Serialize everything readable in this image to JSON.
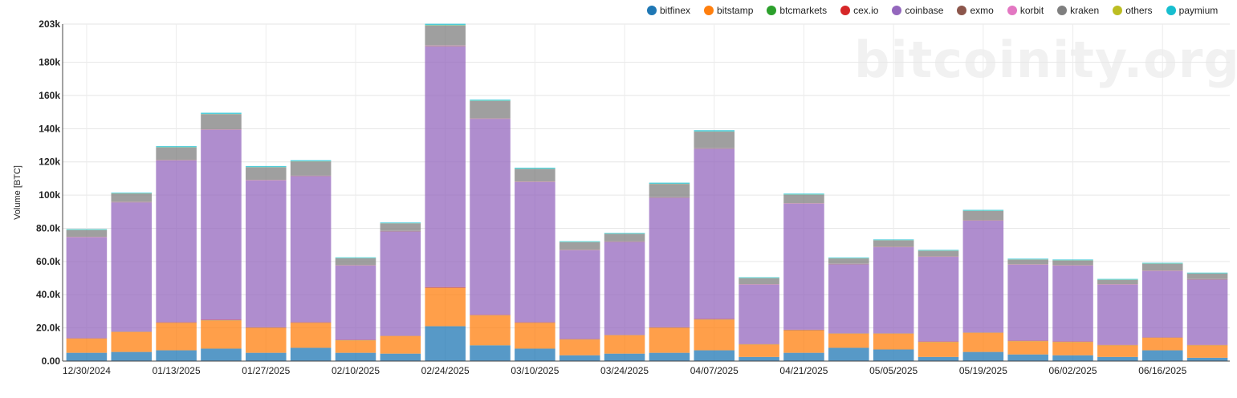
{
  "chart_data": {
    "type": "bar",
    "stacked": true,
    "ylabel": "Volume [BTC]",
    "ylim": [
      0,
      203000
    ],
    "yticks": [
      "0.00",
      "20.0k",
      "40.0k",
      "60.0k",
      "80.0k",
      "100k",
      "120k",
      "140k",
      "160k",
      "180k",
      "203k"
    ],
    "ytick_values": [
      0,
      20000,
      40000,
      60000,
      80000,
      100000,
      120000,
      140000,
      160000,
      180000,
      203000
    ],
    "grid": true,
    "legend_position": "top-right",
    "watermark": "bitcoinity.org",
    "categories": [
      "12/30/2024",
      "01/06/2025",
      "01/13/2025",
      "01/20/2025",
      "01/27/2025",
      "02/03/2025",
      "02/10/2025",
      "02/17/2025",
      "02/24/2025",
      "03/03/2025",
      "03/10/2025",
      "03/17/2025",
      "03/24/2025",
      "03/31/2025",
      "04/07/2025",
      "04/14/2025",
      "04/21/2025",
      "04/28/2025",
      "05/05/2025",
      "05/12/2025",
      "05/19/2025",
      "05/26/2025",
      "06/02/2025",
      "06/09/2025",
      "06/16/2025",
      "06/23/2025"
    ],
    "x_tick_labels": [
      "12/30/2024",
      "01/13/2025",
      "01/27/2025",
      "02/10/2025",
      "02/24/2025",
      "03/10/2025",
      "03/24/2025",
      "04/07/2025",
      "04/21/2025",
      "05/05/2025",
      "05/19/2025",
      "06/02/2025",
      "06/16/2025"
    ],
    "series": [
      {
        "name": "bitfinex",
        "color": "#1f77b4",
        "values": [
          5000,
          5500,
          6500,
          7500,
          5000,
          8000,
          5000,
          4500,
          21000,
          9500,
          7500,
          3500,
          4500,
          5000,
          6500,
          2500,
          5000,
          8000,
          7000,
          2500,
          5500,
          4000,
          3500,
          2500,
          6500,
          2000
        ]
      },
      {
        "name": "bitstamp",
        "color": "#ff7f0e",
        "values": [
          8500,
          12000,
          16500,
          17000,
          15000,
          15000,
          7500,
          10500,
          23000,
          18000,
          15500,
          9500,
          11000,
          15000,
          18500,
          7500,
          13500,
          8500,
          9500,
          9000,
          11500,
          8000,
          8000,
          7000,
          7500,
          7500
        ]
      },
      {
        "name": "btcmarkets",
        "color": "#2ca02c",
        "values": [
          100,
          100,
          100,
          100,
          100,
          100,
          100,
          100,
          100,
          100,
          100,
          100,
          100,
          100,
          100,
          100,
          100,
          100,
          100,
          100,
          100,
          100,
          100,
          100,
          100,
          100
        ]
      },
      {
        "name": "cex.io",
        "color": "#d62728",
        "values": [
          200,
          200,
          300,
          300,
          300,
          300,
          200,
          200,
          500,
          300,
          300,
          200,
          200,
          300,
          300,
          200,
          300,
          200,
          200,
          200,
          200,
          200,
          200,
          200,
          200,
          200
        ]
      },
      {
        "name": "coinbase",
        "color": "#9467bd",
        "values": [
          60800,
          77800,
          97500,
          114500,
          88500,
          88000,
          44800,
          62800,
          145000,
          118000,
          84500,
          53500,
          56000,
          78000,
          102500,
          35800,
          76000,
          41500,
          51800,
          51000,
          67300,
          45800,
          45800,
          36300,
          40000,
          39300
        ]
      },
      {
        "name": "exmo",
        "color": "#8c564b",
        "values": [
          200,
          200,
          200,
          200,
          200,
          200,
          200,
          200,
          300,
          200,
          200,
          200,
          200,
          200,
          200,
          200,
          200,
          200,
          200,
          200,
          200,
          200,
          200,
          200,
          200,
          200
        ]
      },
      {
        "name": "korbit",
        "color": "#e377c2",
        "values": [
          100,
          100,
          100,
          100,
          100,
          100,
          100,
          100,
          200,
          100,
          100,
          100,
          100,
          100,
          100,
          100,
          100,
          100,
          100,
          100,
          100,
          100,
          100,
          100,
          100,
          100
        ]
      },
      {
        "name": "kraken",
        "color": "#7f7f7f",
        "values": [
          4000,
          5000,
          7500,
          9000,
          7500,
          8500,
          4000,
          4500,
          12000,
          10500,
          7500,
          4500,
          4500,
          8000,
          10000,
          3500,
          5000,
          3200,
          3800,
          3300,
          5500,
          2700,
          2700,
          2500,
          4000,
          3300
        ]
      },
      {
        "name": "others",
        "color": "#bcbd22",
        "values": [
          100,
          100,
          100,
          100,
          100,
          100,
          100,
          100,
          200,
          100,
          100,
          100,
          100,
          100,
          100,
          100,
          100,
          100,
          100,
          100,
          100,
          100,
          100,
          100,
          100,
          100
        ]
      },
      {
        "name": "paymium",
        "color": "#17becf",
        "values": [
          500,
          500,
          700,
          800,
          700,
          700,
          500,
          500,
          900,
          700,
          700,
          500,
          500,
          700,
          800,
          500,
          600,
          500,
          500,
          500,
          600,
          500,
          500,
          500,
          500,
          500
        ]
      }
    ]
  }
}
